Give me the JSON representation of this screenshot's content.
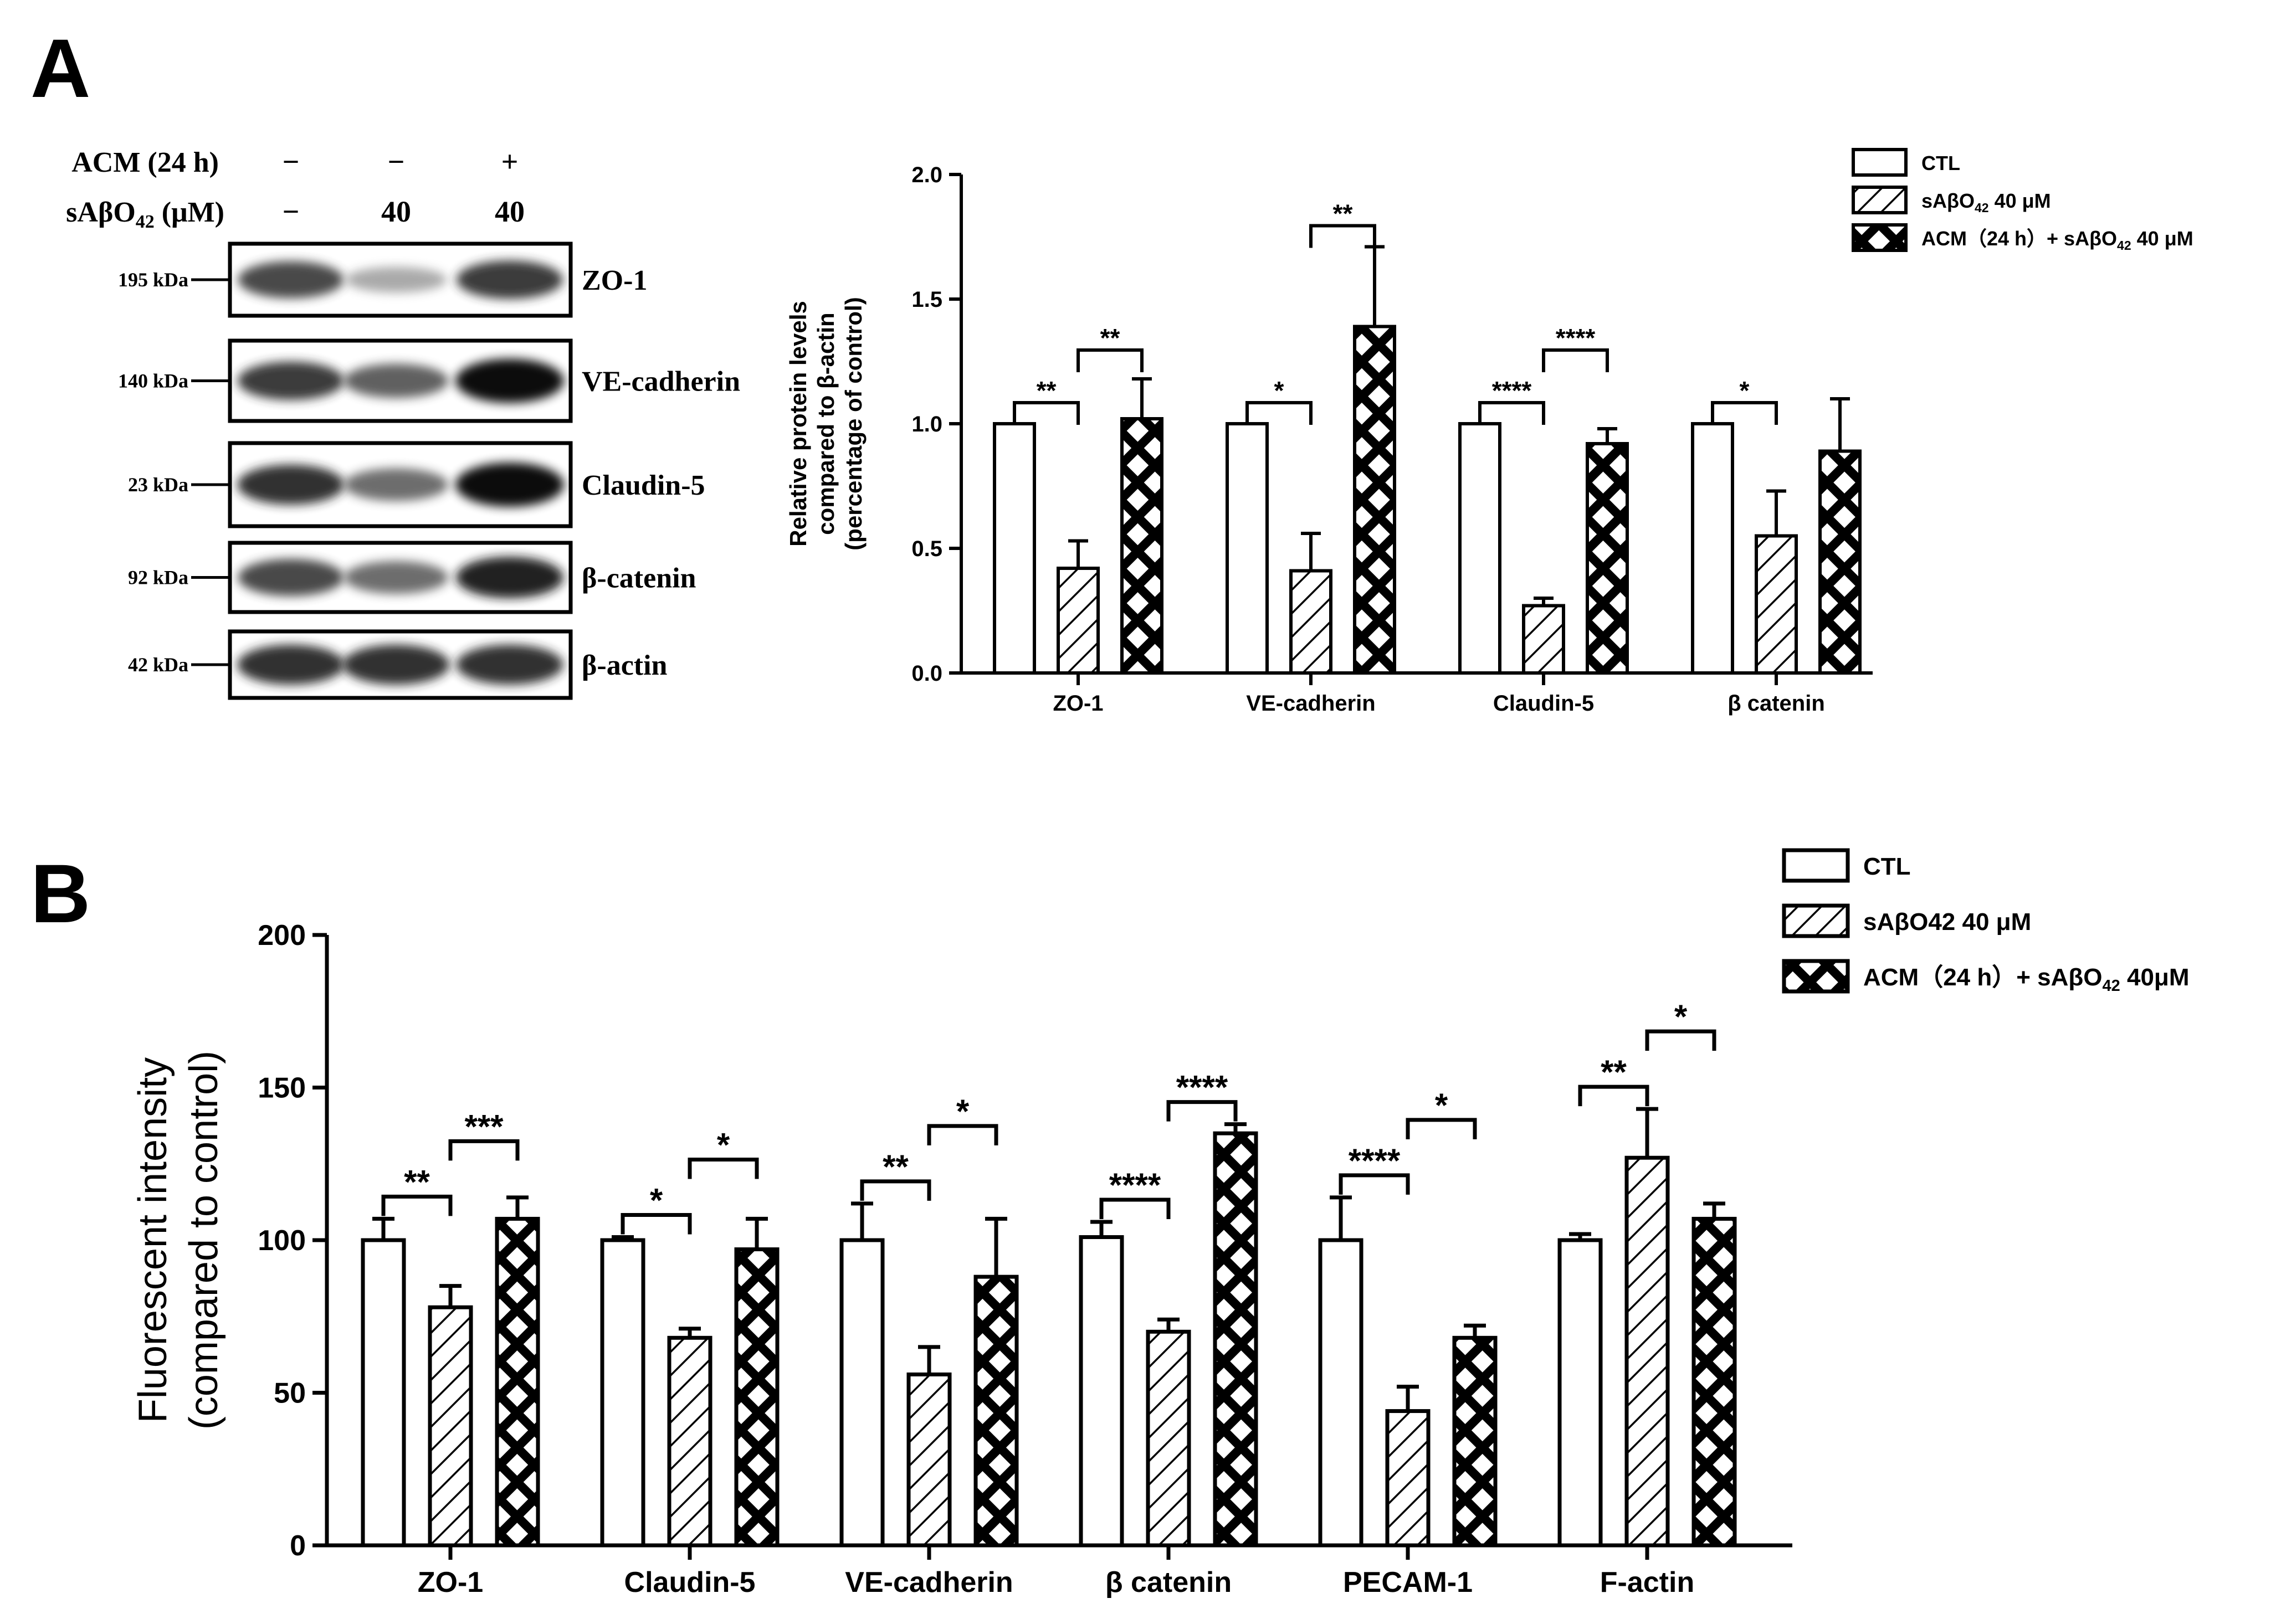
{
  "panel_a": {
    "letter": "A",
    "western_blot": {
      "conditions": [
        {
          "label": "ACM (24 h)",
          "values": [
            "−",
            "−",
            "+"
          ]
        },
        {
          "label": "sAβO42 (μM)",
          "label_main": "sAβO",
          "label_sub": "42",
          "label_tail": " (μM)",
          "values": [
            "−",
            "40",
            "40"
          ]
        }
      ],
      "blots": [
        {
          "kda": "195 kDa",
          "protein": "ZO-1",
          "intensities": [
            0.75,
            0.35,
            0.8
          ]
        },
        {
          "kda": "140 kDa",
          "protein": "VE-cadherin",
          "intensities": [
            0.8,
            0.65,
            1.0
          ]
        },
        {
          "kda": "23 kDa",
          "protein": "Claudin-5",
          "intensities": [
            0.85,
            0.6,
            1.0
          ]
        },
        {
          "kda": "92 kDa",
          "protein": "β-catenin",
          "intensities": [
            0.75,
            0.6,
            0.9
          ]
        },
        {
          "kda": "42 kDa",
          "protein": "β-actin",
          "intensities": [
            0.85,
            0.85,
            0.85
          ]
        }
      ]
    }
  },
  "panel_b": {
    "letter": "B"
  },
  "colors": {
    "ink": "#000000",
    "background": "#ffffff"
  },
  "chart_data": [
    {
      "type": "bar",
      "panel": "A",
      "ylabel": "Relative protein levels compared to β-actin (percentage of control)",
      "ylabel_lines": [
        "Relative protein levels",
        "compared to β-actin",
        "(percentage of control)"
      ],
      "categories": [
        "ZO-1",
        "VE-cadherin",
        "Claudin-5",
        "β catenin"
      ],
      "ylim": [
        0,
        2.0
      ],
      "yticks": [
        "0.0",
        "0.5",
        "1.0",
        "1.5",
        "2.0"
      ],
      "legend_position": "top-right",
      "series": [
        {
          "name": "CTL",
          "pattern": "open",
          "values": [
            1.0,
            1.0,
            1.0,
            1.0
          ],
          "errors": [
            0,
            0,
            0,
            0
          ]
        },
        {
          "name": "sAβO42 40 μM",
          "name_main": "sAβO",
          "name_sub": "42",
          "name_tail": " 40 μM",
          "pattern": "hatch",
          "values": [
            0.42,
            0.41,
            0.27,
            0.55
          ],
          "errors": [
            0.11,
            0.15,
            0.03,
            0.18
          ]
        },
        {
          "name": "ACM (24 h) + sAβO42 40 μM",
          "name_main": "ACM（24 h）+ sAβO",
          "name_sub": "42",
          "name_tail": " 40 μM",
          "pattern": "cross",
          "values": [
            1.02,
            1.39,
            0.92,
            0.89
          ],
          "errors": [
            0.16,
            0.32,
            0.06,
            0.21
          ]
        }
      ],
      "significance": [
        {
          "category": 0,
          "from": 0,
          "to": 1,
          "label": "**"
        },
        {
          "category": 0,
          "from": 1,
          "to": 2,
          "label": "**"
        },
        {
          "category": 1,
          "from": 0,
          "to": 1,
          "label": "*"
        },
        {
          "category": 1,
          "from": 1,
          "to": 2,
          "label": "**"
        },
        {
          "category": 2,
          "from": 0,
          "to": 1,
          "label": "****"
        },
        {
          "category": 2,
          "from": 1,
          "to": 2,
          "label": "****"
        },
        {
          "category": 3,
          "from": 0,
          "to": 1,
          "label": "*"
        }
      ]
    },
    {
      "type": "bar",
      "panel": "B",
      "ylabel": "Fluorescent intensity (compared to control)",
      "ylabel_lines": [
        "Fluorescent intensity",
        "(compared to control)"
      ],
      "categories": [
        "ZO-1",
        "Claudin-5",
        "VE-cadherin",
        "β catenin",
        "PECAM-1",
        "F-actin"
      ],
      "ylim": [
        0,
        200
      ],
      "yticks": [
        "0",
        "50",
        "100",
        "150",
        "200"
      ],
      "legend_position": "top-right",
      "series": [
        {
          "name": "CTL",
          "pattern": "open",
          "values": [
            100,
            100,
            100,
            101,
            100,
            100
          ],
          "errors": [
            7,
            1,
            12,
            5,
            14,
            2
          ]
        },
        {
          "name": "sAβO42 40 μM",
          "name_main": "sAβO42 40 μM",
          "name_sub": "",
          "name_tail": "",
          "pattern": "hatch",
          "values": [
            78,
            68,
            56,
            70,
            44,
            127
          ],
          "errors": [
            7,
            3,
            9,
            4,
            8,
            16
          ]
        },
        {
          "name": "ACM (24 h) + sAβO42 40μM",
          "name_main": "ACM（24 h）+ sAβO",
          "name_sub": "42",
          "name_tail": " 40μM",
          "pattern": "cross",
          "values": [
            107,
            97,
            88,
            135,
            68,
            107
          ],
          "errors": [
            7,
            10,
            19,
            3,
            4,
            5
          ]
        }
      ],
      "significance": [
        {
          "category": 0,
          "from": 0,
          "to": 1,
          "label": "**"
        },
        {
          "category": 0,
          "from": 1,
          "to": 2,
          "label": "***"
        },
        {
          "category": 1,
          "from": 0,
          "to": 1,
          "label": "*"
        },
        {
          "category": 1,
          "from": 1,
          "to": 2,
          "label": "*"
        },
        {
          "category": 2,
          "from": 0,
          "to": 1,
          "label": "**"
        },
        {
          "category": 2,
          "from": 1,
          "to": 2,
          "label": "*"
        },
        {
          "category": 3,
          "from": 0,
          "to": 1,
          "label": "****"
        },
        {
          "category": 3,
          "from": 1,
          "to": 2,
          "label": "****"
        },
        {
          "category": 4,
          "from": 0,
          "to": 1,
          "label": "****"
        },
        {
          "category": 4,
          "from": 1,
          "to": 2,
          "label": "*"
        },
        {
          "category": 5,
          "from": 0,
          "to": 1,
          "label": "**"
        },
        {
          "category": 5,
          "from": 1,
          "to": 2,
          "label": "*"
        }
      ]
    }
  ]
}
